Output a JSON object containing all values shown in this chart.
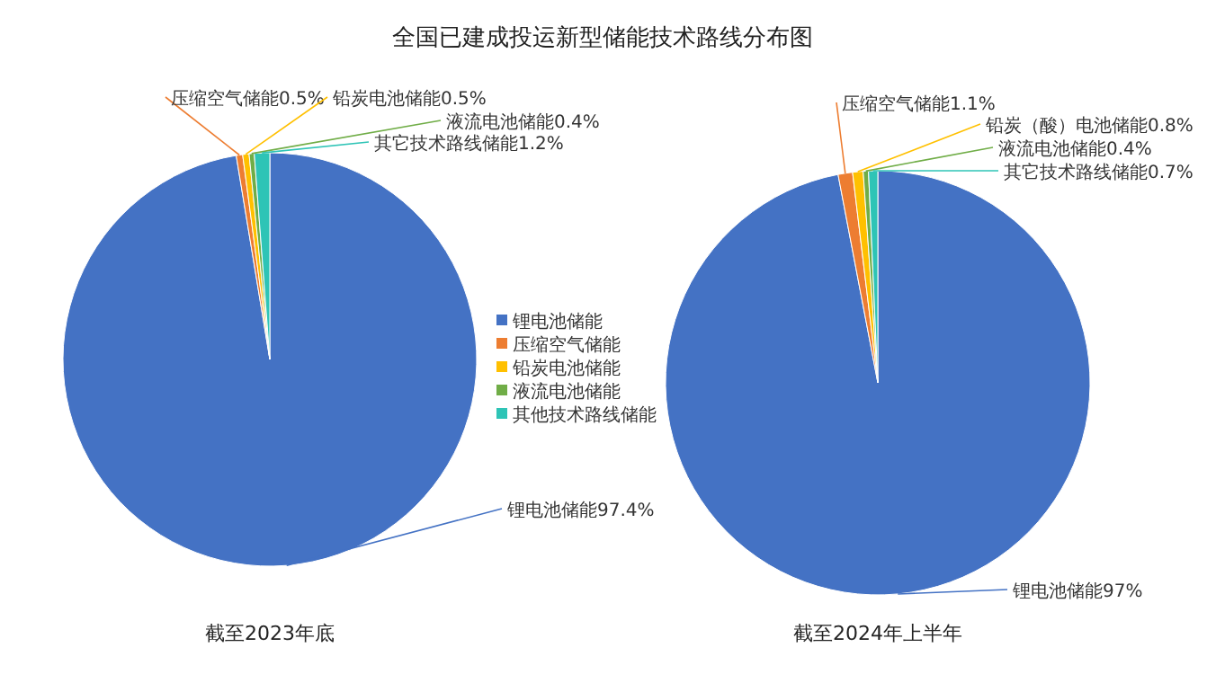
{
  "chart_data": [
    {
      "type": "pie",
      "title": "全国已建成投运新型储能技术路线分布图",
      "categories": [
        "锂电池储能",
        "压缩空气储能",
        "铅炭电池储能",
        "液流电池储能",
        "其他技术路线储能"
      ],
      "values": [
        97.4,
        0.5,
        0.5,
        0.4,
        1.2
      ],
      "colors": [
        "#4472c4",
        "#ed7d31",
        "#ffc000",
        "#70ad47",
        "#2ec4b6"
      ],
      "value_labels": [
        "锂电池储能97.4%",
        "压缩空气储能0.5%",
        "铅炭电池储能0.5%",
        "液流电池储能0.4%",
        "其它技术路线储能1.2%"
      ],
      "legend": "right",
      "annotations": [
        "截至2023年底"
      ]
    },
    {
      "type": "pie",
      "categories": [
        null,
        null,
        null,
        null,
        null
      ],
      "values": [
        97,
        1.1,
        0.8,
        0.4,
        0.7
      ],
      "colors": [
        "#4472c4",
        "#ed7d31",
        "#ffc000",
        "#70ad47",
        "#2ec4b6"
      ],
      "value_labels": [
        "锂电池储能97%",
        "压缩空气储能1.1%",
        "铅炭（酸）电池储能0.8%",
        "液流电池储能0.4%",
        "其它技术路线储能0.7%"
      ],
      "legend": false,
      "annotations": [
        "截至2024年上半年"
      ]
    }
  ]
}
